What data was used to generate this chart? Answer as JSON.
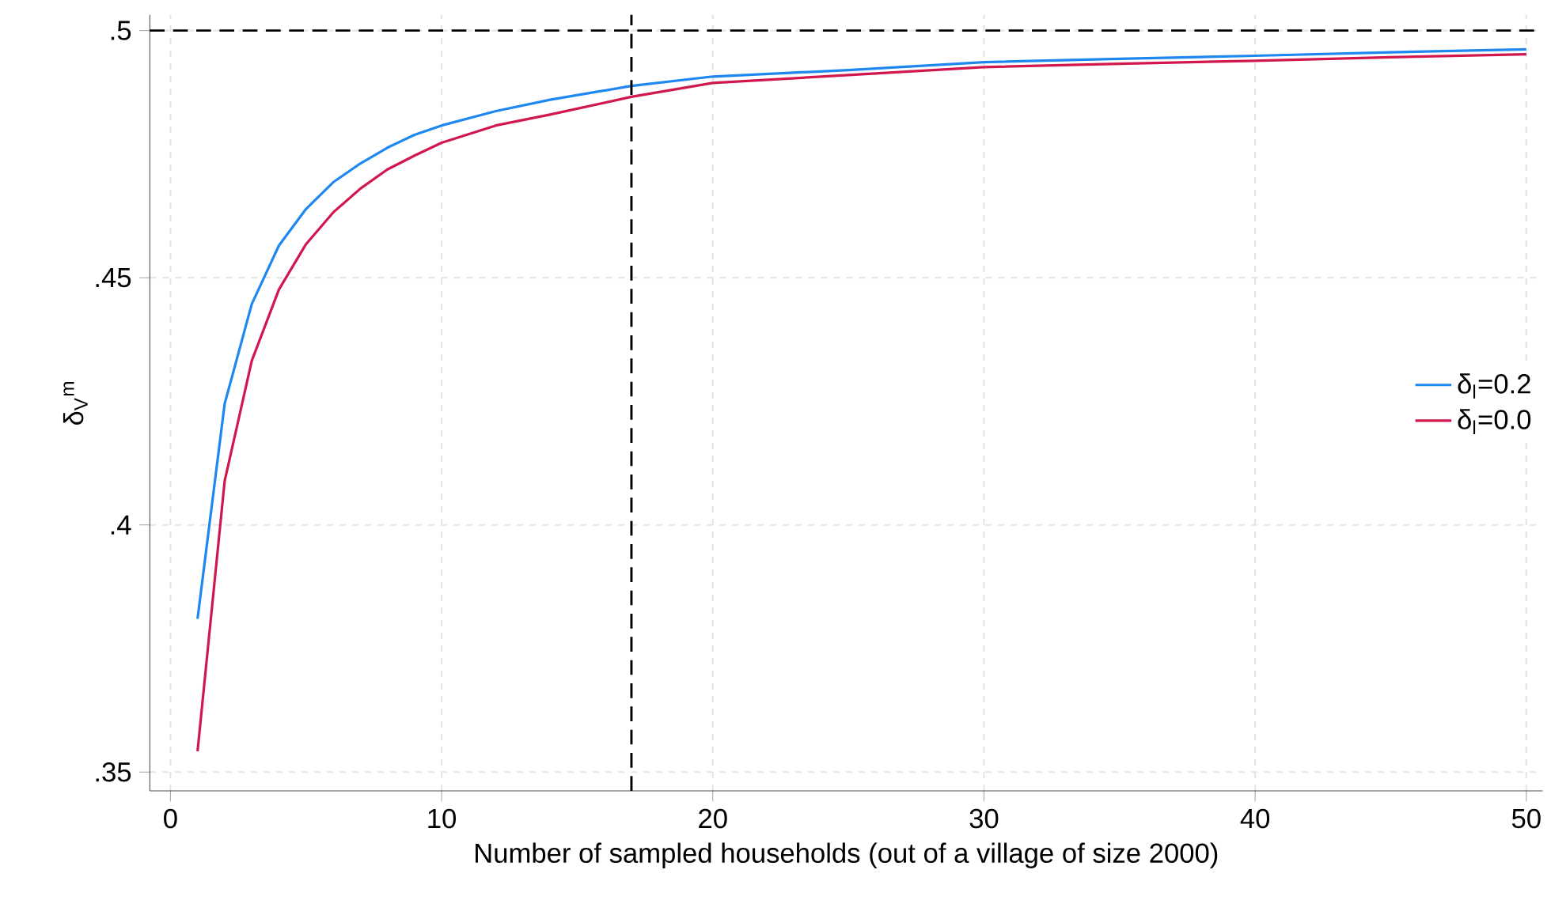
{
  "chart_data": {
    "type": "line",
    "xlabel": "Number of sampled households (out of a village of size 2000)",
    "ylabel": "δ$_{V}$$^{m}$",
    "x": [
      1,
      2,
      3,
      4,
      5,
      6,
      7,
      8,
      9,
      10,
      12,
      14,
      17,
      20,
      25,
      30,
      35,
      40,
      45,
      50
    ],
    "series": [
      {
        "name": "δ$_{l}$=0.2",
        "color": "#1e88f0",
        "values": [
          0.381,
          0.4245,
          0.4447,
          0.4565,
          0.4639,
          0.4693,
          0.4731,
          0.4763,
          0.4789,
          0.4808,
          0.4837,
          0.486,
          0.4888,
          0.4907,
          0.492,
          0.4936,
          0.4943,
          0.4949,
          0.4956,
          0.4962
        ]
      },
      {
        "name": "δ$_{l}$=0.0",
        "color": "#d0184f",
        "values": [
          0.3542,
          0.4089,
          0.4332,
          0.4476,
          0.4568,
          0.4632,
          0.468,
          0.4719,
          0.4747,
          0.4773,
          0.4808,
          0.483,
          0.4866,
          0.4894,
          0.491,
          0.4926,
          0.4933,
          0.4939,
          0.4946,
          0.4952
        ]
      }
    ],
    "xlim": [
      -0.76,
      50.6
    ],
    "ylim": [
      0.3462,
      0.5032
    ],
    "xticks": [
      0,
      10,
      20,
      30,
      40,
      50
    ],
    "yticks": [
      {
        "value": 0.35,
        "label": ".35"
      },
      {
        "value": 0.4,
        "label": ".4"
      },
      {
        "value": 0.45,
        "label": ".45"
      },
      {
        "value": 0.5,
        "label": ".5"
      }
    ],
    "ref_lines": [
      {
        "axis": "x",
        "value": 17,
        "color": "#000000",
        "line_style": "dashed"
      },
      {
        "axis": "y",
        "value": 0.5,
        "color": "#000000",
        "line_style": "dashed"
      }
    ],
    "grid": true,
    "legend": "right",
    "marker": "none",
    "line_style": "solid"
  }
}
